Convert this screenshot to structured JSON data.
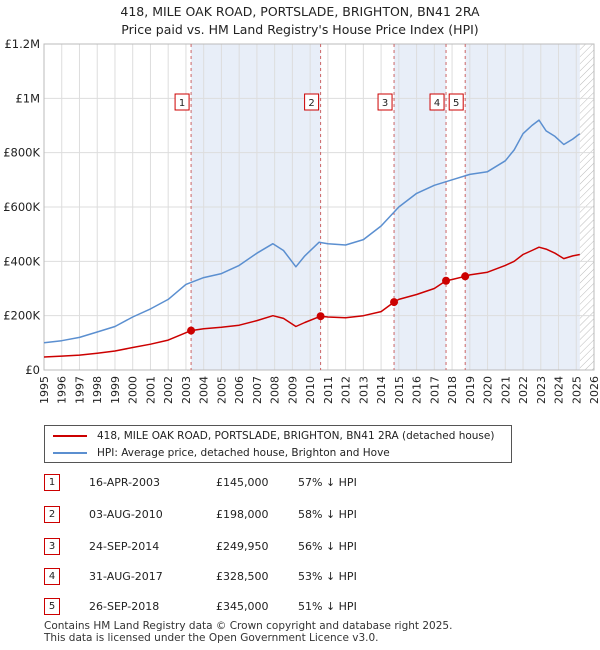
{
  "title_line1": "418, MILE OAK ROAD, PORTSLADE, BRIGHTON, BN41 2RA",
  "title_line2": "Price paid vs. HM Land Registry's House Price Index (HPI)",
  "colors": {
    "property_line": "#cc0000",
    "hpi_line": "#5b8fd0",
    "shade": "#e8eef8",
    "grid": "#dddddd",
    "marker_border": "#cc0000",
    "vline": "#cc6666"
  },
  "legend": {
    "property_label": "418, MILE OAK ROAD, PORTSLADE, BRIGHTON, BN41 2RA (detached house)",
    "hpi_label": "HPI: Average price, detached house, Brighton and Hove"
  },
  "transactions": [
    {
      "num": "1",
      "date": "16-APR-2003",
      "price": "£145,000",
      "hpi": "57% ↓ HPI"
    },
    {
      "num": "2",
      "date": "03-AUG-2010",
      "price": "£198,000",
      "hpi": "58% ↓ HPI"
    },
    {
      "num": "3",
      "date": "24-SEP-2014",
      "price": "£249,950",
      "hpi": "56% ↓ HPI"
    },
    {
      "num": "4",
      "date": "31-AUG-2017",
      "price": "£328,500",
      "hpi": "53% ↓ HPI"
    },
    {
      "num": "5",
      "date": "26-SEP-2018",
      "price": "£345,000",
      "hpi": "51% ↓ HPI"
    }
  ],
  "footer_line1": "Contains HM Land Registry data © Crown copyright and database right 2025.",
  "footer_line2": "This data is licensed under the Open Government Licence v3.0.",
  "chart_data": {
    "type": "line",
    "title": "418, MILE OAK ROAD, PORTSLADE, BRIGHTON, BN41 2RA",
    "subtitle": "Price paid vs. HM Land Registry's House Price Index (HPI)",
    "xlabel": "",
    "ylabel": "",
    "xlim": [
      1995,
      2026
    ],
    "ylim": [
      0,
      1200000
    ],
    "x_ticks": [
      1995,
      1996,
      1997,
      1998,
      1999,
      2000,
      2001,
      2002,
      2003,
      2004,
      2005,
      2006,
      2007,
      2008,
      2009,
      2010,
      2011,
      2012,
      2013,
      2014,
      2015,
      2016,
      2017,
      2018,
      2019,
      2020,
      2021,
      2022,
      2023,
      2024,
      2025,
      2026
    ],
    "y_ticks": [
      {
        "value": 0,
        "label": "£0"
      },
      {
        "value": 200000,
        "label": "£200K"
      },
      {
        "value": 400000,
        "label": "£400K"
      },
      {
        "value": 600000,
        "label": "£600K"
      },
      {
        "value": 800000,
        "label": "£800K"
      },
      {
        "value": 1000000,
        "label": "£1M"
      },
      {
        "value": 1200000,
        "label": "£1.2M"
      }
    ],
    "grid": true,
    "shaded_ranges": [
      [
        2003.29,
        2010.59
      ],
      [
        2014.73,
        2017.66
      ],
      [
        2018.74,
        2025.2
      ]
    ],
    "hatched_from": 2025.2,
    "sale_markers": [
      {
        "label": "1",
        "x": 2003.29,
        "y": 145000
      },
      {
        "label": "2",
        "x": 2010.59,
        "y": 198000
      },
      {
        "label": "3",
        "x": 2014.73,
        "y": 249950
      },
      {
        "label": "4",
        "x": 2017.66,
        "y": 328500
      },
      {
        "label": "5",
        "x": 2018.74,
        "y": 345000
      }
    ],
    "series": [
      {
        "name": "418, MILE OAK ROAD, PORTSLADE, BRIGHTON, BN41 2RA (detached house)",
        "color": "#cc0000",
        "x": [
          1995,
          1996,
          1997,
          1998,
          1999,
          2000,
          2001,
          2002,
          2003.29,
          2004,
          2005,
          2006,
          2007,
          2007.9,
          2008.5,
          2009.2,
          2009.7,
          2010.59,
          2011,
          2012,
          2013,
          2014,
          2014.73,
          2015,
          2016,
          2017,
          2017.66,
          2018,
          2018.74,
          2019,
          2020,
          2021,
          2021.5,
          2022,
          2022.5,
          2022.9,
          2023.3,
          2023.8,
          2024.3,
          2024.8,
          2025.2
        ],
        "values": [
          48000,
          51000,
          55000,
          62000,
          70000,
          83000,
          95000,
          110000,
          145000,
          152000,
          157000,
          165000,
          182000,
          200000,
          190000,
          160000,
          175000,
          198000,
          195000,
          192000,
          200000,
          215000,
          249950,
          260000,
          278000,
          300000,
          328500,
          333000,
          345000,
          350000,
          360000,
          385000,
          400000,
          425000,
          440000,
          452000,
          445000,
          430000,
          410000,
          420000,
          425000
        ]
      },
      {
        "name": "HPI: Average price, detached house, Brighton and Hove",
        "color": "#5b8fd0",
        "x": [
          1995,
          1996,
          1997,
          1998,
          1999,
          2000,
          2001,
          2002,
          2003,
          2004,
          2005,
          2006,
          2007,
          2007.9,
          2008.5,
          2009.2,
          2009.7,
          2010.5,
          2011,
          2012,
          2013,
          2014,
          2015,
          2016,
          2017,
          2018,
          2019,
          2020,
          2021,
          2021.5,
          2022,
          2022.5,
          2022.9,
          2023.3,
          2023.8,
          2024.3,
          2024.8,
          2025.2
        ],
        "values": [
          100000,
          108000,
          120000,
          140000,
          160000,
          195000,
          225000,
          260000,
          315000,
          340000,
          355000,
          385000,
          430000,
          465000,
          440000,
          380000,
          420000,
          470000,
          465000,
          460000,
          480000,
          530000,
          600000,
          650000,
          680000,
          700000,
          720000,
          730000,
          770000,
          810000,
          870000,
          900000,
          920000,
          880000,
          860000,
          830000,
          850000,
          870000
        ]
      }
    ]
  }
}
